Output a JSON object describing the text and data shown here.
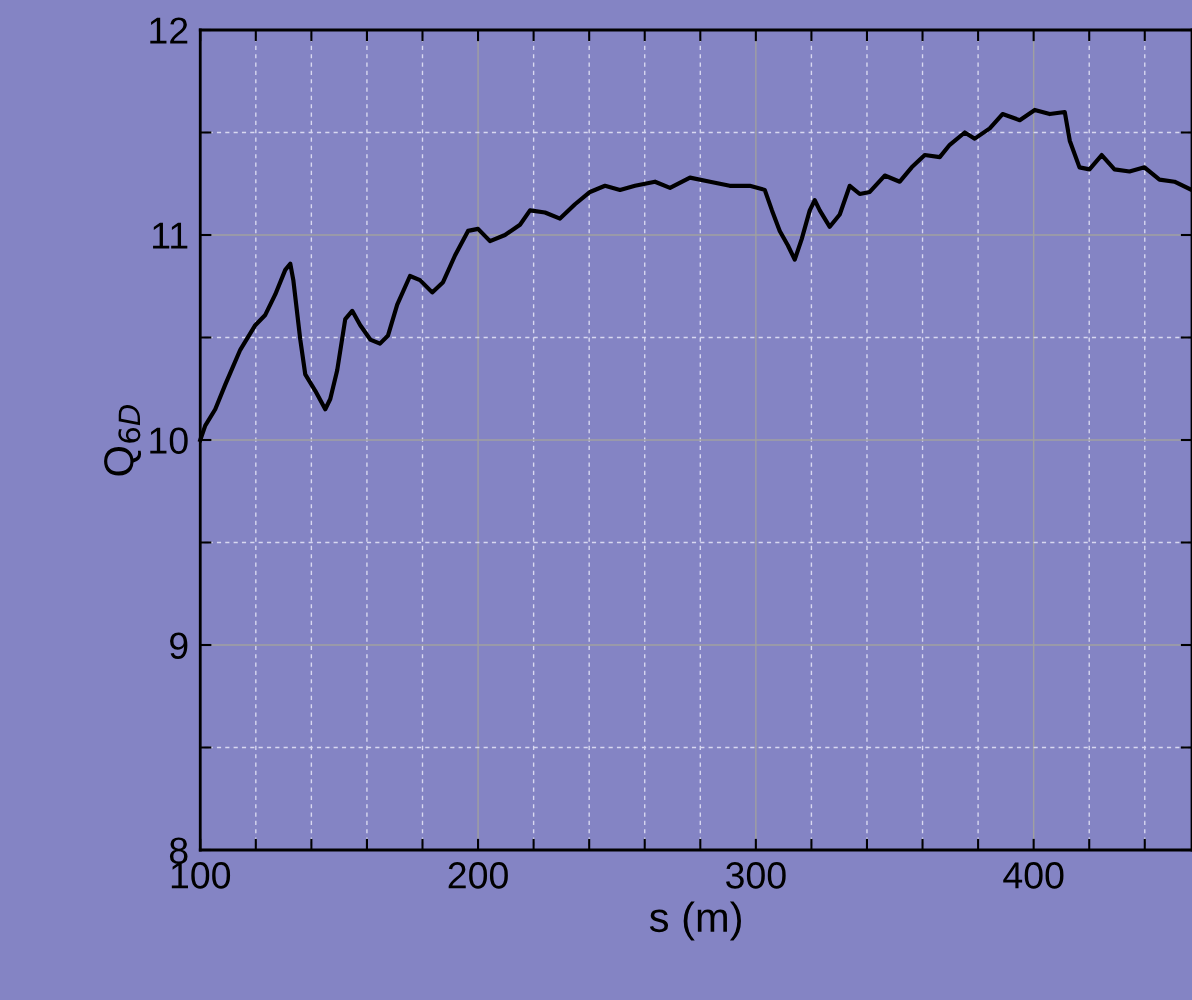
{
  "chart_data": {
    "type": "line",
    "xlabel": "s (m)",
    "ylabel": "Q$_{6D}$",
    "x": [
      100,
      101.8,
      105.4,
      109,
      114.4,
      119.8,
      123.4,
      127,
      130.6,
      132.4,
      133.5,
      136,
      137.8,
      141.4,
      145,
      146.8,
      149.3,
      152.2,
      154.7,
      157.6,
      161.2,
      164.7,
      167.6,
      170.9,
      175.5,
      179.1,
      183.5,
      187.4,
      191.7,
      196.4,
      200,
      204.3,
      209.7,
      215.1,
      218.7,
      224.1,
      229.5,
      234.9,
      240.3,
      245.7,
      251.1,
      256.5,
      263.7,
      269.1,
      276.3,
      283.5,
      290.6,
      297.8,
      303.2,
      305.8,
      308.6,
      311.5,
      314,
      316.5,
      319.4,
      321.2,
      323,
      326.6,
      330.2,
      333.8,
      337.4,
      341,
      346.4,
      351.8,
      356.1,
      360.8,
      366.2,
      369.8,
      375.2,
      378.8,
      384.2,
      388.8,
      395,
      400.4,
      405.8,
      411.2,
      413,
      416.5,
      420.1,
      424.5,
      429.1,
      434.5,
      439.9,
      445.3,
      450.7,
      456.8
    ],
    "series": [
      {
        "color": "#000000",
        "values": [
          10.0,
          10.07,
          10.15,
          10.27,
          10.44,
          10.56,
          10.61,
          10.71,
          10.83,
          10.86,
          10.78,
          10.49,
          10.32,
          10.24,
          10.15,
          10.2,
          10.34,
          10.59,
          10.63,
          10.56,
          10.49,
          10.47,
          10.51,
          10.66,
          10.8,
          10.78,
          10.72,
          10.77,
          10.9,
          11.02,
          11.03,
          10.97,
          11.0,
          11.05,
          11.12,
          11.11,
          11.08,
          11.15,
          11.21,
          11.24,
          11.22,
          11.24,
          11.26,
          11.23,
          11.28,
          11.26,
          11.24,
          11.24,
          11.22,
          11.12,
          11.02,
          10.95,
          10.88,
          10.98,
          11.12,
          11.17,
          11.12,
          11.04,
          11.1,
          11.24,
          11.2,
          11.21,
          11.29,
          11.26,
          11.33,
          11.39,
          11.38,
          11.44,
          11.5,
          11.47,
          11.52,
          11.59,
          11.56,
          11.61,
          11.59,
          11.6,
          11.46,
          11.33,
          11.32,
          11.39,
          11.32,
          11.31,
          11.33,
          11.27,
          11.26,
          11.22
        ]
      }
    ],
    "xlim": [
      100,
      457
    ],
    "ylim": [
      8,
      12
    ],
    "xticks": [
      100,
      {
        "value": 120,
        "label": null
      },
      {
        "value": 140,
        "label": null
      },
      {
        "value": 160,
        "label": null
      },
      {
        "value": 180,
        "label": null
      },
      200,
      {
        "value": 220,
        "label": null
      },
      {
        "value": 240,
        "label": null
      },
      {
        "value": 260,
        "label": null
      },
      {
        "value": 280,
        "label": null
      },
      300,
      {
        "value": 320,
        "label": null
      },
      {
        "value": 340,
        "label": null
      },
      {
        "value": 360,
        "label": null
      },
      {
        "value": 380,
        "label": null
      },
      400,
      {
        "value": 420,
        "label": null
      },
      {
        "value": 440,
        "label": null
      }
    ],
    "yticks": [
      8,
      {
        "value": 8.5,
        "label": null
      },
      9,
      {
        "value": 9.5,
        "label": null
      },
      10,
      {
        "value": 10.5,
        "label": null
      },
      11,
      {
        "value": 11.5,
        "label": null
      },
      12
    ],
    "grid": true,
    "marker": "none",
    "line_style": "solid",
    "legend": false
  }
}
